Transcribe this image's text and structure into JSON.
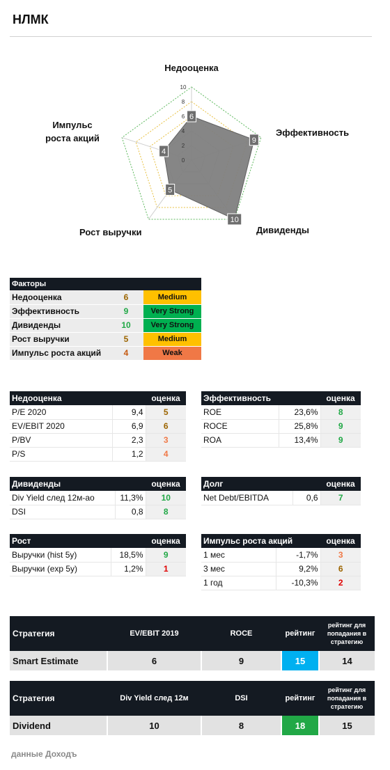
{
  "title": "НЛМК",
  "chart_data": {
    "type": "radar",
    "axes": [
      "Недооценка",
      "Эффективность",
      "Дивиденды",
      "Рост выручки",
      "Импульс роста акций"
    ],
    "axis_labels": {
      "top": "Недооценка",
      "right": "Эффективность",
      "bottom_right": "Дивиденды",
      "bottom_left": "Рост выручки",
      "left_line1": "Импульс",
      "left_line2": "роста акций"
    },
    "values": [
      6,
      9,
      10,
      5,
      4
    ],
    "value_labels": [
      "6",
      "9",
      "10",
      "5",
      "4"
    ],
    "rlim": [
      0,
      10
    ],
    "ticks": [
      "0",
      "2",
      "4",
      "6",
      "8",
      "10"
    ]
  },
  "colors": {
    "header": "#141a22",
    "medium": "#ffc000",
    "very_strong": "#00b050",
    "weak": "#f07846",
    "rating_blue": "#00b0f0",
    "rating_green": "#21a846",
    "score_green": "#21a846",
    "score_orange": "#c55a11",
    "score_red": "#e00000",
    "score_brown": "#9c6500"
  },
  "factors": {
    "header": "Факторы",
    "rows": [
      {
        "name": "Недооценка",
        "value": "6",
        "badge": "Medium"
      },
      {
        "name": "Эффективность",
        "value": "9",
        "badge": "Very Strong"
      },
      {
        "name": "Дивиденды",
        "value": "10",
        "badge": "Very Strong"
      },
      {
        "name": "Рост выручки",
        "value": "5",
        "badge": "Medium"
      },
      {
        "name": "Импульс роста акций",
        "value": "4",
        "badge": "Weak"
      }
    ]
  },
  "score_col": "оценка",
  "valuation": {
    "header": "Недооценка",
    "rows": [
      {
        "name": "P/E 2020",
        "value": "9,4",
        "score": "5"
      },
      {
        "name": "EV/EBIT 2020",
        "value": "6,9",
        "score": "6"
      },
      {
        "name": "P/BV",
        "value": "2,3",
        "score": "3"
      },
      {
        "name": "P/S",
        "value": "1,2",
        "score": "4"
      }
    ]
  },
  "efficiency": {
    "header": "Эффективность",
    "rows": [
      {
        "name": "ROE",
        "value": "23,6%",
        "score": "8"
      },
      {
        "name": "ROCE",
        "value": "25,8%",
        "score": "9"
      },
      {
        "name": "ROA",
        "value": "13,4%",
        "score": "9"
      }
    ]
  },
  "dividends": {
    "header": "Дивиденды",
    "rows": [
      {
        "name": "Div Yield след 12м-ао",
        "value": "11,3%",
        "score": "10"
      },
      {
        "name": "DSI",
        "value": "0,8",
        "score": "8"
      }
    ]
  },
  "debt": {
    "header": "Долг",
    "rows": [
      {
        "name": "Net Debt/EBITDA",
        "value": "0,6",
        "score": "7"
      }
    ]
  },
  "growth": {
    "header": "Рост",
    "rows": [
      {
        "name": "Выручки (hist 5y)",
        "value": "18,5%",
        "score": "9"
      },
      {
        "name": "Выручки (exp 5y)",
        "value": "1,2%",
        "score": "1"
      }
    ]
  },
  "momentum": {
    "header": "Импульс роста акций",
    "rows": [
      {
        "name": "1 мес",
        "value": "-1,7%",
        "score": "3"
      },
      {
        "name": "3 мес",
        "value": "9,2%",
        "score": "6"
      },
      {
        "name": "1 год",
        "value": "-10,3%",
        "score": "2"
      }
    ]
  },
  "strategy1": {
    "h_strategy": "Стратегия",
    "h_m1": "EV/EBIT 2019",
    "h_m2": "ROCE",
    "h_rating": "рейтинг",
    "h_threshold": "рейтинг для попадания в стратегию",
    "name": "Smart Estimate",
    "m1": "6",
    "m2": "9",
    "rating": "15",
    "threshold": "14"
  },
  "strategy2": {
    "h_strategy": "Стратегия",
    "h_m1": "Div Yield след 12м",
    "h_m2": "DSI",
    "h_rating": "рейтинг",
    "h_threshold": "рейтинг для попадания в стратегию",
    "name": "Dividend",
    "m1": "10",
    "m2": "8",
    "rating": "18",
    "threshold": "15"
  },
  "footer": "данные Доходъ"
}
